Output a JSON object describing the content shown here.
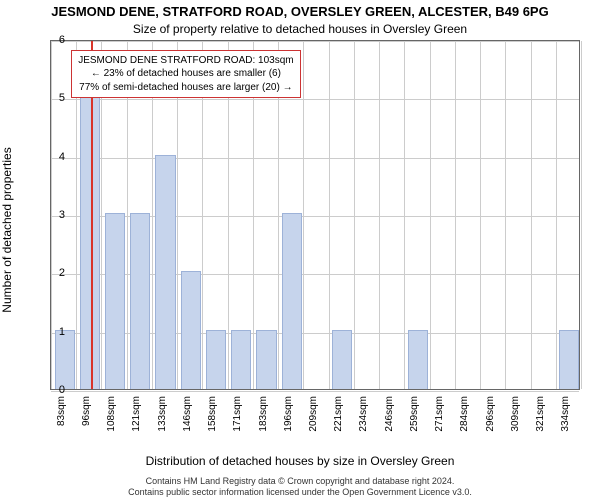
{
  "titles": {
    "line1": "JESMOND DENE, STRATFORD ROAD, OVERSLEY GREEN, ALCESTER, B49 6PG",
    "line2": "Size of property relative to detached houses in Oversley Green"
  },
  "axes": {
    "ylabel": "Number of detached properties",
    "xlabel": "Distribution of detached houses by size in Oversley Green",
    "ylim": [
      0,
      6
    ],
    "yticks": [
      0,
      1,
      2,
      3,
      4,
      5,
      6
    ],
    "x_labels": [
      "83sqm",
      "96sqm",
      "108sqm",
      "121sqm",
      "133sqm",
      "146sqm",
      "158sqm",
      "171sqm",
      "183sqm",
      "196sqm",
      "209sqm",
      "221sqm",
      "234sqm",
      "246sqm",
      "259sqm",
      "271sqm",
      "284sqm",
      "296sqm",
      "309sqm",
      "321sqm",
      "334sqm"
    ],
    "x_tick_fontsize": 10,
    "y_tick_fontsize": 11,
    "grid_color": "#cccccc",
    "border_color": "#666666",
    "x_slot_count": 21
  },
  "bars": {
    "color": "#c6d4ec",
    "border": "#9db2d8",
    "width_fraction": 0.72,
    "values": [
      {
        "slot": 0,
        "h": 1
      },
      {
        "slot": 1,
        "h": 5
      },
      {
        "slot": 2,
        "h": 3
      },
      {
        "slot": 3,
        "h": 3
      },
      {
        "slot": 4,
        "h": 4
      },
      {
        "slot": 5,
        "h": 2
      },
      {
        "slot": 6,
        "h": 1
      },
      {
        "slot": 7,
        "h": 1
      },
      {
        "slot": 8,
        "h": 1
      },
      {
        "slot": 9,
        "h": 3
      },
      {
        "slot": 10,
        "h": 0
      },
      {
        "slot": 11,
        "h": 1
      },
      {
        "slot": 12,
        "h": 0
      },
      {
        "slot": 13,
        "h": 0
      },
      {
        "slot": 14,
        "h": 1
      },
      {
        "slot": 15,
        "h": 0
      },
      {
        "slot": 16,
        "h": 0
      },
      {
        "slot": 17,
        "h": 0
      },
      {
        "slot": 18,
        "h": 0
      },
      {
        "slot": 19,
        "h": 0
      },
      {
        "slot": 20,
        "h": 1
      }
    ]
  },
  "marker": {
    "slot_position": 1.6,
    "color": "#d9352a"
  },
  "legend": {
    "line1": "JESMOND DENE STRATFORD ROAD: 103sqm",
    "line2": "← 23% of detached houses are smaller (6)",
    "line3": "77% of semi-detached houses are larger (20) →",
    "border_color": "#cc3333",
    "left_slot": 0.8,
    "top_value": 5.85
  },
  "footer": {
    "line1": "Contains HM Land Registry data © Crown copyright and database right 2024.",
    "line2": "Contains public sector information licensed under the Open Government Licence v3.0."
  },
  "colors": {
    "background": "#ffffff",
    "text": "#000000"
  }
}
